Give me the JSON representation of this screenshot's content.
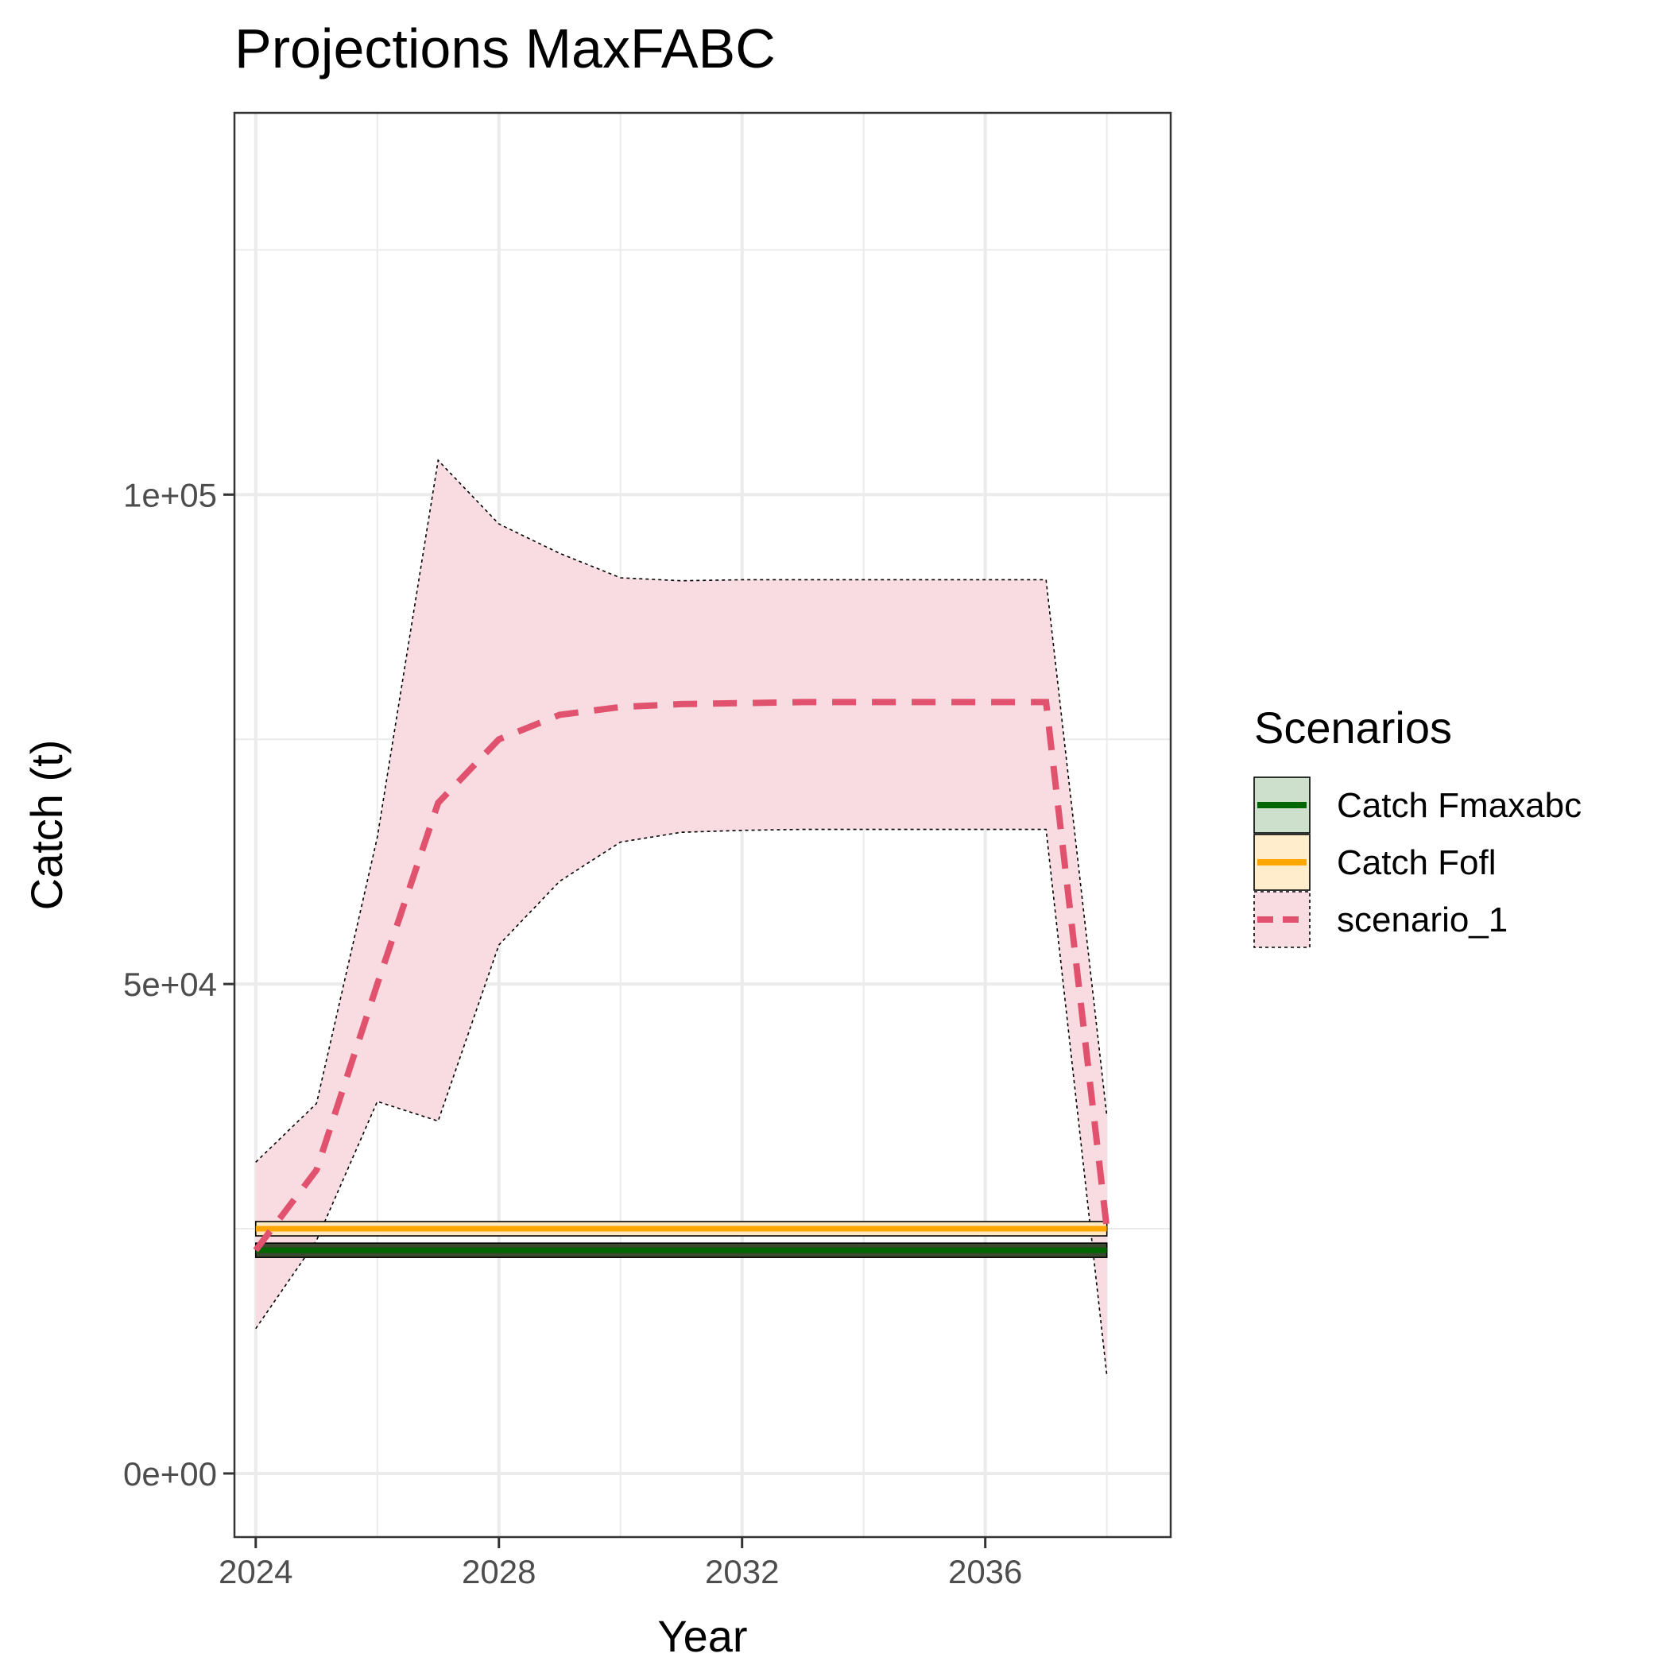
{
  "chart_data": {
    "type": "line",
    "title": "Projections MaxFABC",
    "xlabel": "Year",
    "ylabel": "Catch (t)",
    "xlim": [
      2023.65,
      2039.05
    ],
    "ylim": [
      -6500,
      139000
    ],
    "x_ticks": [
      2024,
      2028,
      2032,
      2036
    ],
    "x_tick_labels": [
      "2024",
      "2028",
      "2032",
      "2036"
    ],
    "x_minor_ticks": [
      2026,
      2030,
      2034,
      2038
    ],
    "y_ticks": [
      0,
      50000,
      100000
    ],
    "y_tick_labels": [
      "0e+00",
      "5e+04",
      "1e+05"
    ],
    "y_minor_ticks": [
      25000,
      75000,
      125000
    ],
    "grid": true,
    "legend": {
      "title": "Scenarios",
      "position": "right",
      "entries": [
        "Catch Fmaxabc",
        "Catch Fofl",
        "scenario_1"
      ]
    },
    "colors": {
      "fmaxabc": "#006400",
      "fofl": "#FFA500",
      "scenario": "#E0526E",
      "ribbon": "#F8DCE1",
      "grid": "#EBEBEB",
      "panel_border": "#333333"
    },
    "x": [
      2024,
      2025,
      2026,
      2027,
      2028,
      2029,
      2030,
      2031,
      2032,
      2033,
      2034,
      2035,
      2036,
      2037,
      2038
    ],
    "series": [
      {
        "name": "Catch Fmaxabc",
        "style": "solid",
        "x": [
          2024,
          2038
        ],
        "values": [
          22800,
          22800
        ]
      },
      {
        "name": "Catch Fofl",
        "style": "solid",
        "x": [
          2024,
          2038
        ],
        "values": [
          25000,
          25000
        ]
      },
      {
        "name": "scenario_1",
        "style": "dashed",
        "values": [
          22800,
          31000,
          50000,
          68500,
          75000,
          77500,
          78300,
          78600,
          78700,
          78800,
          78800,
          78800,
          78800,
          78800,
          25000
        ],
        "lower": [
          14800,
          23800,
          38000,
          36000,
          54000,
          60500,
          64500,
          65500,
          65700,
          65800,
          65800,
          65800,
          65800,
          65800,
          10000
        ],
        "upper": [
          31800,
          37800,
          65000,
          103500,
          97000,
          94000,
          91500,
          91200,
          91300,
          91300,
          91300,
          91300,
          91300,
          91300,
          36500
        ]
      }
    ]
  }
}
